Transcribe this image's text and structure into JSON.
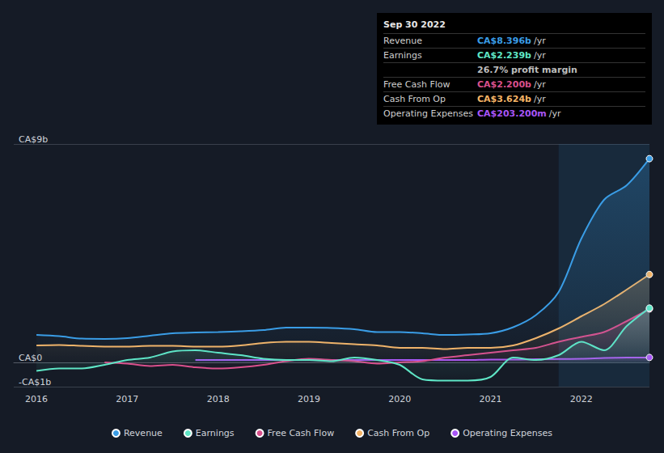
{
  "chart_data": {
    "type": "line",
    "x": [
      2016,
      2016.25,
      2016.5,
      2016.75,
      2017,
      2017.25,
      2017.5,
      2017.75,
      2018,
      2018.25,
      2018.5,
      2018.75,
      2019,
      2019.25,
      2019.5,
      2019.75,
      2020,
      2020.25,
      2020.5,
      2020.75,
      2021,
      2021.25,
      2021.5,
      2021.75,
      2022,
      2022.25,
      2022.5,
      2022.75
    ],
    "xlim": [
      2015.75,
      2022.75
    ],
    "xticks": [
      2016,
      2017,
      2018,
      2019,
      2020,
      2021,
      2022
    ],
    "ylim": [
      -1,
      9
    ],
    "yticks": [
      {
        "value": -1,
        "label": "-CA$1b"
      },
      {
        "value": 0,
        "label": "CA$0"
      },
      {
        "value": 9,
        "label": "CA$9b"
      }
    ],
    "grid": true,
    "legend": "bottom",
    "highlight_x": [
      2021.75,
      2022.75
    ],
    "series": [
      {
        "name": "Revenue",
        "color": "#3a9de6",
        "values": [
          1.13,
          1.08,
          0.98,
          0.97,
          1.0,
          1.1,
          1.2,
          1.23,
          1.25,
          1.28,
          1.33,
          1.43,
          1.43,
          1.42,
          1.37,
          1.25,
          1.25,
          1.2,
          1.13,
          1.15,
          1.2,
          1.45,
          1.95,
          2.9,
          5.1,
          6.7,
          7.3,
          8.396
        ]
      },
      {
        "name": "Earnings",
        "color": "#5fe6c6",
        "values": [
          -0.35,
          -0.25,
          -0.25,
          -0.1,
          0.1,
          0.2,
          0.45,
          0.5,
          0.4,
          0.3,
          0.15,
          0.1,
          0.1,
          0.05,
          0.2,
          0.1,
          -0.1,
          -0.7,
          -0.75,
          -0.75,
          -0.6,
          0.2,
          0.1,
          0.3,
          0.85,
          0.5,
          1.5,
          2.239
        ]
      },
      {
        "name": "Free Cash Flow",
        "color": "#d9508c",
        "values": [
          null,
          null,
          null,
          0.0,
          -0.05,
          -0.15,
          -0.1,
          -0.2,
          -0.25,
          -0.2,
          -0.1,
          0.05,
          0.15,
          0.1,
          0.05,
          -0.05,
          0.0,
          0.05,
          0.2,
          0.3,
          0.4,
          0.5,
          0.6,
          0.85,
          1.05,
          1.25,
          1.7,
          2.2
        ]
      },
      {
        "name": "Cash From Op",
        "color": "#f5b466",
        "values": [
          0.7,
          0.72,
          0.68,
          0.65,
          0.65,
          0.68,
          0.68,
          0.65,
          0.65,
          0.7,
          0.8,
          0.85,
          0.85,
          0.8,
          0.75,
          0.7,
          0.6,
          0.6,
          0.55,
          0.6,
          0.6,
          0.7,
          1.0,
          1.4,
          1.9,
          2.4,
          3.0,
          3.624
        ]
      },
      {
        "name": "Operating Expenses",
        "color": "#a855f7",
        "values": [
          null,
          null,
          null,
          null,
          null,
          null,
          null,
          0.1,
          0.1,
          0.1,
          0.1,
          0.1,
          0.1,
          0.1,
          0.1,
          0.1,
          0.1,
          0.1,
          0.1,
          0.1,
          0.12,
          0.12,
          0.13,
          0.14,
          0.15,
          0.18,
          0.2,
          0.2032
        ]
      }
    ],
    "annotation": {
      "title": "Sep 30 2022",
      "rows": [
        {
          "label": "Revenue",
          "value": "CA$8.396b",
          "unit": "/yr",
          "color": "#3a9de6"
        },
        {
          "label": "Earnings",
          "value": "CA$2.239b",
          "unit": "/yr",
          "color": "#5fe6c6"
        },
        {
          "text": "26.7% profit margin"
        },
        {
          "label": "Free Cash Flow",
          "value": "CA$2.200b",
          "unit": "/yr",
          "color": "#d9508c"
        },
        {
          "label": "Cash From Op",
          "value": "CA$3.624b",
          "unit": "/yr",
          "color": "#f5b466"
        },
        {
          "label": "Operating Expenses",
          "value": "CA$203.200m",
          "unit": "/yr",
          "color": "#a855f7"
        }
      ]
    }
  }
}
